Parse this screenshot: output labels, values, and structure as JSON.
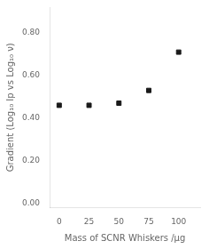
{
  "chart_data": {
    "type": "scatter",
    "x_label": "Mass of SCNR Whiskers /μg",
    "y_label": "Gradient (Log₁₀ Ip vs Log₁₀ ν)",
    "x": [
      0,
      25,
      50,
      75,
      100
    ],
    "values": [
      0.46,
      0.46,
      0.47,
      0.53,
      0.71
    ],
    "color": "#1a1a1a",
    "marker": "square",
    "xlim": [
      -8,
      118
    ],
    "ylim": [
      -0.02,
      0.92
    ],
    "xticks": [
      0,
      25,
      50,
      75,
      100
    ],
    "yticks": [
      {
        "value": 0.0,
        "label": "0.00"
      },
      {
        "value": 0.2,
        "label": "0.20"
      },
      {
        "value": 0.4,
        "label": "0.40"
      },
      {
        "value": 0.6,
        "label": "0.60"
      },
      {
        "value": 0.8,
        "label": "0.80"
      }
    ],
    "grid": false
  }
}
